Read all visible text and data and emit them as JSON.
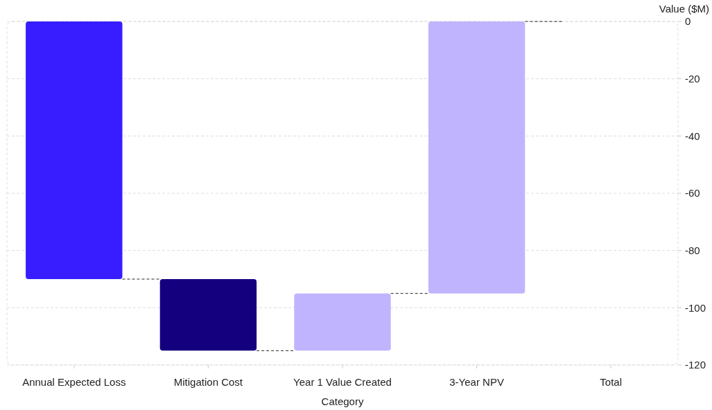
{
  "chart_data": {
    "type": "bar",
    "xlabel": "Category",
    "ylabel": "Value ($M)",
    "categories": [
      "Annual Expected Loss",
      "Mitigation Cost",
      "Year 1 Value Created",
      "3-Year NPV",
      "Total"
    ],
    "values": [
      -90,
      -25,
      20,
      95,
      null
    ],
    "base": [
      0,
      -90,
      -115,
      -95,
      null
    ],
    "colors": [
      "#371dff",
      "#14007f",
      "#c0b4ff",
      "#c0b4ff",
      null
    ],
    "ylim": [
      -120,
      0
    ],
    "yticks": [
      0,
      -20,
      -40,
      -60,
      -80,
      -100,
      -120
    ],
    "grid": "y"
  }
}
